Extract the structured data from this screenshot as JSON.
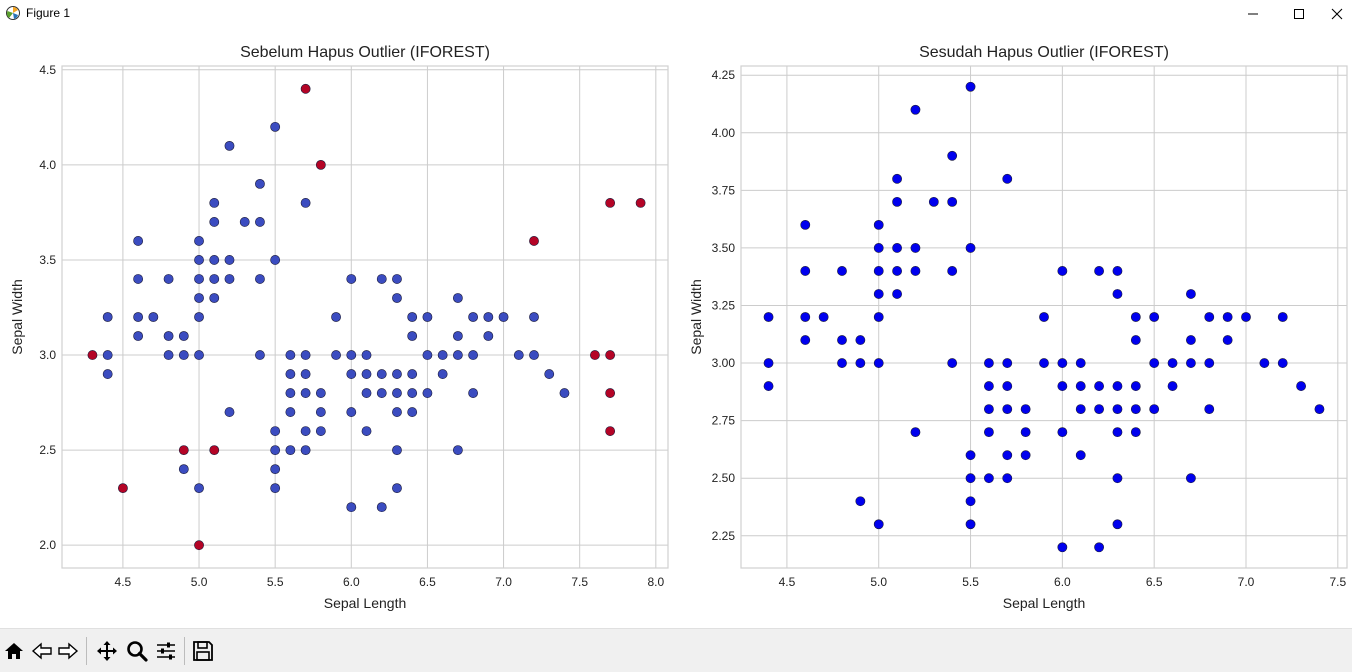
{
  "window": {
    "title": "Figure 1"
  },
  "colors": {
    "inlier_before": "#3b4cc0",
    "outlier_before": "#b40426",
    "after": "#0000ee",
    "grid": "#cccccc",
    "axis": "#d0d0d0"
  },
  "toolbar": {
    "icons": [
      "home-icon",
      "back-icon",
      "forward-icon",
      "pan-icon",
      "zoom-icon",
      "configure-subplots-icon",
      "save-icon"
    ]
  },
  "chart_data": [
    {
      "type": "scatter",
      "title": "Sebelum Hapus Outlier (IFOREST)",
      "xlabel": "Sepal Length",
      "ylabel": "Sepal Width",
      "xlim": [
        4.1,
        8.08
      ],
      "ylim": [
        1.88,
        4.52
      ],
      "xticks": [
        "4.5",
        "5.0",
        "5.5",
        "6.0",
        "6.5",
        "7.0",
        "7.5",
        "8.0"
      ],
      "yticks": [
        "2.0",
        "2.5",
        "3.0",
        "3.5",
        "4.0",
        "4.5"
      ],
      "grid": true,
      "series": [
        {
          "role": "inlier",
          "color": "#3b4cc0",
          "points": [
            [
              4.4,
              3.2
            ],
            [
              4.4,
              3.0
            ],
            [
              4.4,
              2.9
            ],
            [
              4.6,
              3.6
            ],
            [
              4.6,
              3.4
            ],
            [
              4.6,
              3.2
            ],
            [
              4.6,
              3.1
            ],
            [
              4.7,
              3.2
            ],
            [
              4.8,
              3.4
            ],
            [
              4.8,
              3.1
            ],
            [
              4.8,
              3.0
            ],
            [
              4.9,
              3.1
            ],
            [
              4.9,
              3.0
            ],
            [
              4.9,
              2.4
            ],
            [
              5.0,
              3.6
            ],
            [
              5.0,
              3.5
            ],
            [
              5.0,
              3.4
            ],
            [
              5.0,
              3.3
            ],
            [
              5.0,
              3.2
            ],
            [
              5.0,
              3.0
            ],
            [
              5.0,
              2.3
            ],
            [
              5.1,
              3.8
            ],
            [
              5.1,
              3.7
            ],
            [
              5.1,
              3.5
            ],
            [
              5.1,
              3.4
            ],
            [
              5.1,
              3.3
            ],
            [
              5.2,
              4.1
            ],
            [
              5.2,
              3.5
            ],
            [
              5.2,
              3.4
            ],
            [
              5.2,
              2.7
            ],
            [
              5.3,
              3.7
            ],
            [
              5.4,
              3.9
            ],
            [
              5.4,
              3.7
            ],
            [
              5.4,
              3.4
            ],
            [
              5.4,
              3.0
            ],
            [
              5.5,
              4.2
            ],
            [
              5.5,
              3.5
            ],
            [
              5.5,
              2.6
            ],
            [
              5.5,
              2.5
            ],
            [
              5.5,
              2.4
            ],
            [
              5.5,
              2.3
            ],
            [
              5.6,
              3.0
            ],
            [
              5.6,
              2.9
            ],
            [
              5.6,
              2.8
            ],
            [
              5.6,
              2.7
            ],
            [
              5.6,
              2.5
            ],
            [
              5.7,
              3.8
            ],
            [
              5.7,
              3.0
            ],
            [
              5.7,
              2.9
            ],
            [
              5.7,
              2.8
            ],
            [
              5.7,
              2.6
            ],
            [
              5.7,
              2.5
            ],
            [
              5.8,
              2.8
            ],
            [
              5.8,
              2.7
            ],
            [
              5.8,
              2.6
            ],
            [
              5.9,
              3.2
            ],
            [
              5.9,
              3.0
            ],
            [
              6.0,
              3.4
            ],
            [
              6.0,
              3.0
            ],
            [
              6.0,
              2.9
            ],
            [
              6.0,
              2.7
            ],
            [
              6.0,
              2.2
            ],
            [
              6.1,
              3.0
            ],
            [
              6.1,
              2.9
            ],
            [
              6.1,
              2.8
            ],
            [
              6.1,
              2.6
            ],
            [
              6.2,
              3.4
            ],
            [
              6.2,
              2.9
            ],
            [
              6.2,
              2.8
            ],
            [
              6.2,
              2.2
            ],
            [
              6.3,
              3.4
            ],
            [
              6.3,
              3.3
            ],
            [
              6.3,
              2.9
            ],
            [
              6.3,
              2.8
            ],
            [
              6.3,
              2.7
            ],
            [
              6.3,
              2.5
            ],
            [
              6.3,
              2.3
            ],
            [
              6.4,
              3.2
            ],
            [
              6.4,
              3.1
            ],
            [
              6.4,
              2.9
            ],
            [
              6.4,
              2.8
            ],
            [
              6.4,
              2.7
            ],
            [
              6.5,
              3.2
            ],
            [
              6.5,
              3.0
            ],
            [
              6.5,
              2.8
            ],
            [
              6.6,
              3.0
            ],
            [
              6.6,
              2.9
            ],
            [
              6.7,
              3.3
            ],
            [
              6.7,
              3.1
            ],
            [
              6.7,
              3.0
            ],
            [
              6.7,
              2.5
            ],
            [
              6.8,
              3.2
            ],
            [
              6.8,
              3.0
            ],
            [
              6.8,
              2.8
            ],
            [
              6.9,
              3.2
            ],
            [
              6.9,
              3.1
            ],
            [
              7.0,
              3.2
            ],
            [
              7.1,
              3.0
            ],
            [
              7.2,
              3.2
            ],
            [
              7.2,
              3.0
            ],
            [
              7.3,
              2.9
            ],
            [
              7.4,
              2.8
            ]
          ]
        },
        {
          "role": "outlier",
          "color": "#b40426",
          "points": [
            [
              4.3,
              3.0
            ],
            [
              4.5,
              2.3
            ],
            [
              4.9,
              2.5
            ],
            [
              5.0,
              2.0
            ],
            [
              5.1,
              2.5
            ],
            [
              5.7,
              4.4
            ],
            [
              5.8,
              4.0
            ],
            [
              7.2,
              3.6
            ],
            [
              7.6,
              3.0
            ],
            [
              7.7,
              3.8
            ],
            [
              7.7,
              3.0
            ],
            [
              7.7,
              2.8
            ],
            [
              7.7,
              2.6
            ],
            [
              7.9,
              3.8
            ]
          ]
        }
      ]
    },
    {
      "type": "scatter",
      "title": "Sesudah Hapus Outlier (IFOREST)",
      "xlabel": "Sepal Length",
      "ylabel": "Sepal Width",
      "xlim": [
        4.25,
        7.55
      ],
      "ylim": [
        2.11,
        4.29
      ],
      "xticks": [
        "4.5",
        "5.0",
        "5.5",
        "6.0",
        "6.5",
        "7.0",
        "7.5"
      ],
      "yticks": [
        "2.25",
        "2.50",
        "2.75",
        "3.00",
        "3.25",
        "3.50",
        "3.75",
        "4.00",
        "4.25"
      ],
      "grid": true,
      "series": [
        {
          "role": "inlier",
          "color": "#0000ee",
          "points": [
            [
              4.4,
              3.2
            ],
            [
              4.4,
              3.0
            ],
            [
              4.4,
              2.9
            ],
            [
              4.6,
              3.6
            ],
            [
              4.6,
              3.4
            ],
            [
              4.6,
              3.2
            ],
            [
              4.6,
              3.1
            ],
            [
              4.7,
              3.2
            ],
            [
              4.8,
              3.4
            ],
            [
              4.8,
              3.1
            ],
            [
              4.8,
              3.0
            ],
            [
              4.9,
              3.1
            ],
            [
              4.9,
              3.0
            ],
            [
              4.9,
              2.4
            ],
            [
              5.0,
              3.6
            ],
            [
              5.0,
              3.5
            ],
            [
              5.0,
              3.4
            ],
            [
              5.0,
              3.3
            ],
            [
              5.0,
              3.2
            ],
            [
              5.0,
              3.0
            ],
            [
              5.0,
              2.3
            ],
            [
              5.1,
              3.8
            ],
            [
              5.1,
              3.7
            ],
            [
              5.1,
              3.5
            ],
            [
              5.1,
              3.4
            ],
            [
              5.1,
              3.3
            ],
            [
              5.2,
              4.1
            ],
            [
              5.2,
              3.5
            ],
            [
              5.2,
              3.4
            ],
            [
              5.2,
              2.7
            ],
            [
              5.3,
              3.7
            ],
            [
              5.4,
              3.9
            ],
            [
              5.4,
              3.7
            ],
            [
              5.4,
              3.4
            ],
            [
              5.4,
              3.0
            ],
            [
              5.5,
              4.2
            ],
            [
              5.5,
              3.5
            ],
            [
              5.5,
              2.6
            ],
            [
              5.5,
              2.5
            ],
            [
              5.5,
              2.4
            ],
            [
              5.5,
              2.3
            ],
            [
              5.6,
              3.0
            ],
            [
              5.6,
              2.9
            ],
            [
              5.6,
              2.8
            ],
            [
              5.6,
              2.7
            ],
            [
              5.6,
              2.5
            ],
            [
              5.7,
              3.8
            ],
            [
              5.7,
              3.0
            ],
            [
              5.7,
              2.9
            ],
            [
              5.7,
              2.8
            ],
            [
              5.7,
              2.6
            ],
            [
              5.7,
              2.5
            ],
            [
              5.8,
              2.8
            ],
            [
              5.8,
              2.7
            ],
            [
              5.8,
              2.6
            ],
            [
              5.9,
              3.2
            ],
            [
              5.9,
              3.0
            ],
            [
              6.0,
              3.4
            ],
            [
              6.0,
              3.0
            ],
            [
              6.0,
              2.9
            ],
            [
              6.0,
              2.7
            ],
            [
              6.0,
              2.2
            ],
            [
              6.1,
              3.0
            ],
            [
              6.1,
              2.9
            ],
            [
              6.1,
              2.8
            ],
            [
              6.1,
              2.6
            ],
            [
              6.2,
              3.4
            ],
            [
              6.2,
              2.9
            ],
            [
              6.2,
              2.8
            ],
            [
              6.2,
              2.2
            ],
            [
              6.3,
              3.4
            ],
            [
              6.3,
              3.3
            ],
            [
              6.3,
              2.9
            ],
            [
              6.3,
              2.8
            ],
            [
              6.3,
              2.7
            ],
            [
              6.3,
              2.5
            ],
            [
              6.3,
              2.3
            ],
            [
              6.4,
              3.2
            ],
            [
              6.4,
              3.1
            ],
            [
              6.4,
              2.9
            ],
            [
              6.4,
              2.8
            ],
            [
              6.4,
              2.7
            ],
            [
              6.5,
              3.2
            ],
            [
              6.5,
              3.0
            ],
            [
              6.5,
              2.8
            ],
            [
              6.6,
              3.0
            ],
            [
              6.6,
              2.9
            ],
            [
              6.7,
              3.3
            ],
            [
              6.7,
              3.1
            ],
            [
              6.7,
              3.0
            ],
            [
              6.7,
              2.5
            ],
            [
              6.8,
              3.2
            ],
            [
              6.8,
              3.0
            ],
            [
              6.8,
              2.8
            ],
            [
              6.9,
              3.2
            ],
            [
              6.9,
              3.1
            ],
            [
              7.0,
              3.2
            ],
            [
              7.1,
              3.0
            ],
            [
              7.2,
              3.2
            ],
            [
              7.2,
              3.0
            ],
            [
              7.3,
              2.9
            ],
            [
              7.4,
              2.8
            ]
          ]
        }
      ]
    }
  ]
}
